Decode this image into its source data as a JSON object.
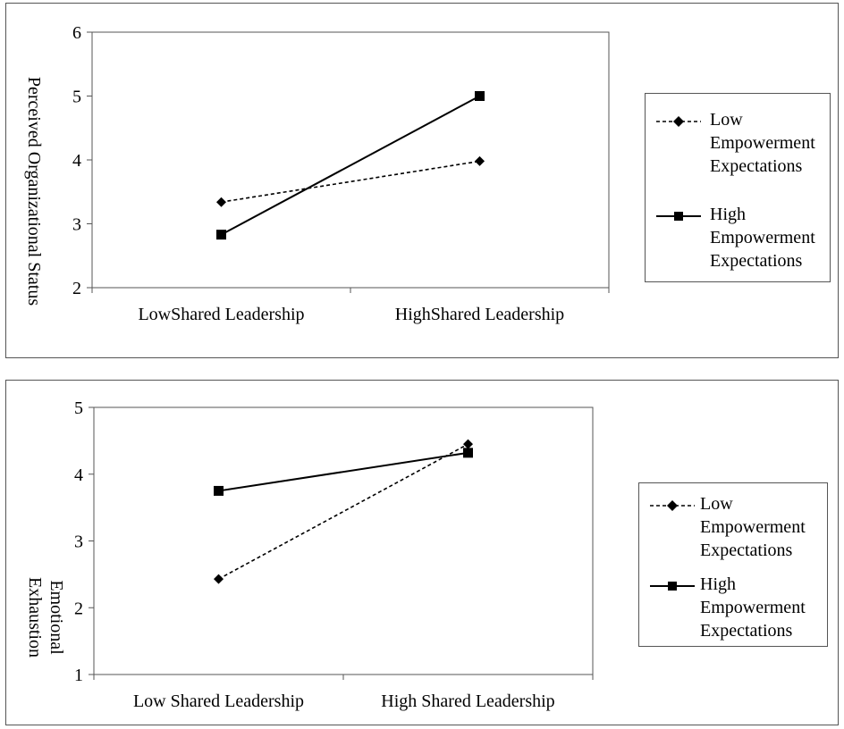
{
  "chart_data": [
    {
      "type": "line",
      "categories": [
        "LowShared Leadership",
        "HighShared Leadership"
      ],
      "ylabel": "Perceived Organizational Status",
      "xlabel": "",
      "ylim": [
        2,
        6
      ],
      "yticks": [
        "2",
        "3",
        "4",
        "5",
        "6"
      ],
      "grid": false,
      "legend_position": "right",
      "series": [
        {
          "name": "Low\nEmpowerment\nExpectations",
          "values": [
            3.34,
            3.98
          ],
          "line": "dashed",
          "marker": "diamond",
          "color": "#000000"
        },
        {
          "name": "High\nEmpowerment\nExpectations",
          "values": [
            2.83,
            5.0
          ],
          "line": "solid",
          "marker": "square",
          "color": "#000000"
        }
      ]
    },
    {
      "type": "line",
      "categories": [
        "Low Shared Leadership",
        "High Shared Leadership"
      ],
      "ylabel": "Emotional\nExhaustion",
      "xlabel": "",
      "ylim": [
        1,
        5
      ],
      "yticks": [
        "1",
        "2",
        "3",
        "4",
        "5"
      ],
      "grid": false,
      "legend_position": "right",
      "series": [
        {
          "name": "Low\nEmpowerment\nExpectations",
          "values": [
            2.43,
            4.45
          ],
          "line": "dashed",
          "marker": "diamond",
          "color": "#000000"
        },
        {
          "name": "High\nEmpowerment\nExpectations",
          "values": [
            3.75,
            4.32
          ],
          "line": "solid",
          "marker": "square",
          "color": "#000000"
        }
      ]
    }
  ]
}
